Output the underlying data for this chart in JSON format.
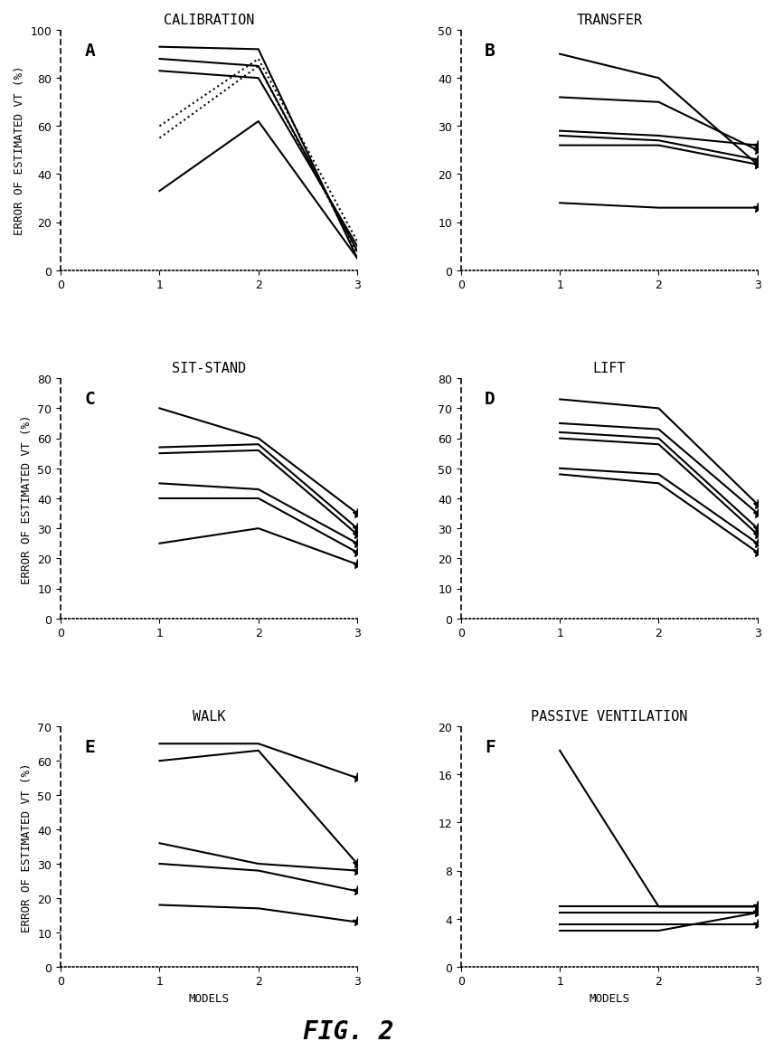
{
  "panels": [
    {
      "label": "A",
      "title": "CALIBRATION",
      "ylabel": "ERROR OF ESTIMATED VT (%)",
      "xlabel": "",
      "ylim": [
        0,
        100
      ],
      "yticks": [
        0,
        20,
        40,
        60,
        80,
        100
      ],
      "xlim": [
        0,
        3
      ],
      "xticks": [
        0,
        1,
        2,
        3
      ],
      "lines": [
        {
          "x": [
            1,
            2,
            3
          ],
          "y": [
            93,
            92,
            5
          ],
          "style": "-",
          "lw": 1.5
        },
        {
          "x": [
            1,
            2,
            3
          ],
          "y": [
            88,
            85,
            8
          ],
          "style": "-",
          "lw": 1.5
        },
        {
          "x": [
            1,
            2,
            3
          ],
          "y": [
            83,
            80,
            10
          ],
          "style": "-",
          "lw": 1.5
        },
        {
          "x": [
            1,
            2,
            3
          ],
          "y": [
            60,
            88,
            12
          ],
          "style": ":",
          "lw": 1.5
        },
        {
          "x": [
            1,
            2,
            3
          ],
          "y": [
            55,
            85,
            7
          ],
          "style": ":",
          "lw": 1.5
        },
        {
          "x": [
            1,
            2,
            3
          ],
          "y": [
            33,
            62,
            5
          ],
          "style": "-",
          "lw": 1.5
        }
      ]
    },
    {
      "label": "B",
      "title": "TRANSFER",
      "ylabel": "",
      "xlabel": "",
      "ylim": [
        0,
        50
      ],
      "yticks": [
        0,
        10,
        20,
        30,
        40,
        50
      ],
      "xlim": [
        0,
        3
      ],
      "xticks": [
        0,
        1,
        2,
        3
      ],
      "lines": [
        {
          "x": [
            1,
            2,
            3
          ],
          "y": [
            45,
            40,
            22
          ],
          "style": "-",
          "lw": 1.5
        },
        {
          "x": [
            1,
            2,
            3
          ],
          "y": [
            36,
            35,
            25
          ],
          "style": "-",
          "lw": 1.5
        },
        {
          "x": [
            1,
            2,
            3
          ],
          "y": [
            29,
            28,
            26
          ],
          "style": "-",
          "lw": 1.5
        },
        {
          "x": [
            1,
            2,
            3
          ],
          "y": [
            28,
            27,
            23
          ],
          "style": "-",
          "lw": 1.5
        },
        {
          "x": [
            1,
            2,
            3
          ],
          "y": [
            26,
            26,
            22
          ],
          "style": "-",
          "lw": 1.5
        },
        {
          "x": [
            1,
            2,
            3
          ],
          "y": [
            14,
            13,
            13
          ],
          "style": "-",
          "lw": 1.5
        }
      ]
    },
    {
      "label": "C",
      "title": "SIT-STAND",
      "ylabel": "ERROR OF ESTIMATED VT (%)",
      "xlabel": "",
      "ylim": [
        0,
        80
      ],
      "yticks": [
        0,
        10,
        20,
        30,
        40,
        50,
        60,
        70,
        80
      ],
      "xlim": [
        0,
        3
      ],
      "xticks": [
        0,
        1,
        2,
        3
      ],
      "lines": [
        {
          "x": [
            1,
            2,
            3
          ],
          "y": [
            70,
            60,
            35
          ],
          "style": "-",
          "lw": 1.5
        },
        {
          "x": [
            1,
            2,
            3
          ],
          "y": [
            57,
            58,
            30
          ],
          "style": "-",
          "lw": 1.5
        },
        {
          "x": [
            1,
            2,
            3
          ],
          "y": [
            55,
            56,
            28
          ],
          "style": "-",
          "lw": 1.5
        },
        {
          "x": [
            1,
            2,
            3
          ],
          "y": [
            45,
            43,
            25
          ],
          "style": "-",
          "lw": 1.5
        },
        {
          "x": [
            1,
            2,
            3
          ],
          "y": [
            40,
            40,
            22
          ],
          "style": "-",
          "lw": 1.5
        },
        {
          "x": [
            1,
            2,
            3
          ],
          "y": [
            25,
            30,
            18
          ],
          "style": "-",
          "lw": 1.5
        }
      ]
    },
    {
      "label": "D",
      "title": "LIFT",
      "ylabel": "",
      "xlabel": "",
      "ylim": [
        0,
        80
      ],
      "yticks": [
        0,
        10,
        20,
        30,
        40,
        50,
        60,
        70,
        80
      ],
      "xlim": [
        0,
        3
      ],
      "xticks": [
        0,
        1,
        2,
        3
      ],
      "lines": [
        {
          "x": [
            1,
            2,
            3
          ],
          "y": [
            73,
            70,
            38
          ],
          "style": "-",
          "lw": 1.5
        },
        {
          "x": [
            1,
            2,
            3
          ],
          "y": [
            65,
            63,
            35
          ],
          "style": "-",
          "lw": 1.5
        },
        {
          "x": [
            1,
            2,
            3
          ],
          "y": [
            62,
            60,
            30
          ],
          "style": "-",
          "lw": 1.5
        },
        {
          "x": [
            1,
            2,
            3
          ],
          "y": [
            60,
            58,
            28
          ],
          "style": "-",
          "lw": 1.5
        },
        {
          "x": [
            1,
            2,
            3
          ],
          "y": [
            50,
            48,
            25
          ],
          "style": "-",
          "lw": 1.5
        },
        {
          "x": [
            1,
            2,
            3
          ],
          "y": [
            48,
            45,
            22
          ],
          "style": "-",
          "lw": 1.5
        }
      ]
    },
    {
      "label": "E",
      "title": "WALK",
      "ylabel": "ERROR OF ESTIMATED VT (%)",
      "xlabel": "MODELS",
      "ylim": [
        0,
        70
      ],
      "yticks": [
        0,
        10,
        20,
        30,
        40,
        50,
        60,
        70
      ],
      "xlim": [
        0,
        3
      ],
      "xticks": [
        0,
        1,
        2,
        3
      ],
      "lines": [
        {
          "x": [
            1,
            2,
            3
          ],
          "y": [
            65,
            65,
            55
          ],
          "style": "-",
          "lw": 1.5
        },
        {
          "x": [
            1,
            2,
            3
          ],
          "y": [
            60,
            63,
            30
          ],
          "style": "-",
          "lw": 1.5
        },
        {
          "x": [
            1,
            2,
            3
          ],
          "y": [
            36,
            30,
            28
          ],
          "style": "-",
          "lw": 1.5
        },
        {
          "x": [
            1,
            2,
            3
          ],
          "y": [
            30,
            28,
            22
          ],
          "style": "-",
          "lw": 1.5
        },
        {
          "x": [
            1,
            2,
            3
          ],
          "y": [
            18,
            17,
            13
          ],
          "style": "-",
          "lw": 1.5
        }
      ]
    },
    {
      "label": "F",
      "title": "PASSIVE VENTILATION",
      "ylabel": "",
      "xlabel": "MODELS",
      "ylim": [
        0,
        20
      ],
      "yticks": [
        0,
        4,
        8,
        12,
        16,
        20
      ],
      "xlim": [
        0,
        3
      ],
      "xticks": [
        0,
        1,
        2,
        3
      ],
      "lines": [
        {
          "x": [
            1,
            2,
            3
          ],
          "y": [
            18,
            5,
            5
          ],
          "style": "-",
          "lw": 1.5
        },
        {
          "x": [
            1,
            2,
            3
          ],
          "y": [
            5,
            5,
            5
          ],
          "style": "-",
          "lw": 1.5
        },
        {
          "x": [
            1,
            2,
            3
          ],
          "y": [
            4.5,
            4.5,
            4.5
          ],
          "style": "-",
          "lw": 1.5
        },
        {
          "x": [
            1,
            2,
            3
          ],
          "y": [
            3.5,
            3.5,
            3.5
          ],
          "style": "-",
          "lw": 1.5
        },
        {
          "x": [
            1,
            2,
            3
          ],
          "y": [
            3,
            3,
            4.5
          ],
          "style": "-",
          "lw": 1.5
        }
      ]
    }
  ],
  "fig_title": "FIG. 2",
  "background_color": "#ffffff",
  "line_color": "#000000",
  "title_fontsize": 11,
  "label_fontsize": 9,
  "tick_fontsize": 9,
  "fig_title_fontsize": 20
}
